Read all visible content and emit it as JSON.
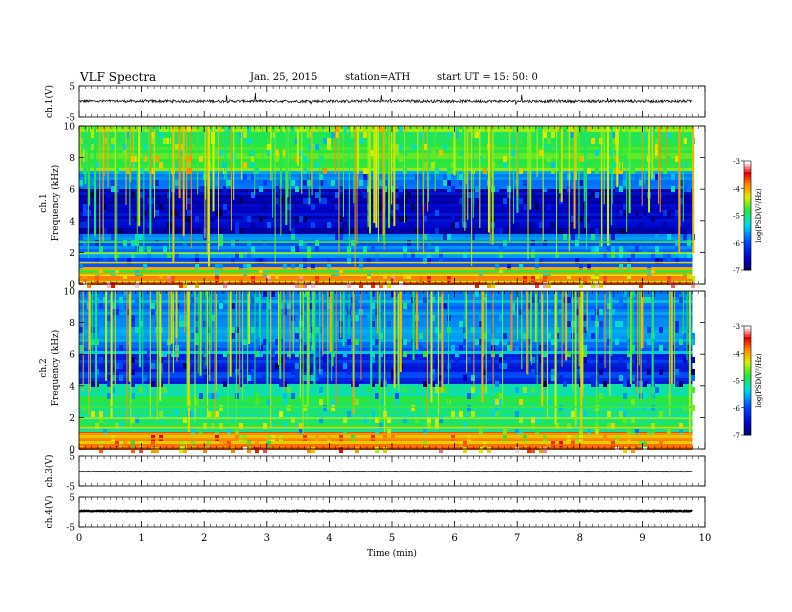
{
  "header": {
    "title": "VLF Spectra",
    "date": "Jan. 25, 2015",
    "station": "station=ATH",
    "start_label": "start  UT =",
    "start_time": "15: 50: 0"
  },
  "chart_data": {
    "type": "heatmap",
    "xlabel": "Time  (min)",
    "xlim": [
      0,
      10
    ],
    "x_ticks": [
      "0",
      "1",
      "2",
      "3",
      "4",
      "5",
      "6",
      "7",
      "8",
      "9",
      "10"
    ],
    "data_end_min": 9.8,
    "panels": [
      {
        "id": "ch1-waveform",
        "type": "line",
        "ylabel": "ch.1(V)",
        "ylim": [
          -5,
          5
        ],
        "y_ticks": [
          "5",
          "-5"
        ],
        "baseline": 0.1,
        "noise": 0.9
      },
      {
        "id": "ch1-spectrogram",
        "type": "heatmap",
        "ylabel_top": "ch.1",
        "ylabel": "Frequency  (kHz)",
        "ylim": [
          0,
          10
        ],
        "y_ticks": [
          "0",
          "2",
          "4",
          "6",
          "8",
          "10"
        ],
        "colorbar": {
          "label": "log(PSD(V²/Hz)",
          "range": [
            -7,
            -3
          ],
          "ticks": [
            "-3",
            "-4",
            "-5",
            "-6",
            "-7"
          ]
        }
      },
      {
        "id": "ch2-spectrogram",
        "type": "heatmap",
        "ylabel_top": "ch.2",
        "ylabel": "Frequency  (kHz)",
        "ylim": [
          0,
          10
        ],
        "y_ticks": [
          "0",
          "2",
          "4",
          "6",
          "8",
          "10"
        ],
        "colorbar": {
          "label": "log(PSD(V²/Hz)",
          "range": [
            -7,
            -3
          ],
          "ticks": [
            "-3",
            "-4",
            "-5",
            "-6",
            "-7"
          ]
        }
      },
      {
        "id": "ch3-waveform",
        "type": "line",
        "ylabel": "ch.3(V)",
        "ylim": [
          -5,
          5
        ],
        "y_ticks": [
          "5",
          "-5"
        ],
        "baseline": -0.2,
        "noise": 0.15
      },
      {
        "id": "ch4-waveform",
        "type": "line",
        "ylabel": "ch.4(V)",
        "ylim": [
          -5,
          5
        ],
        "y_ticks": [
          "5",
          "-5"
        ],
        "baseline": 0.3,
        "noise": 0.25
      }
    ]
  }
}
